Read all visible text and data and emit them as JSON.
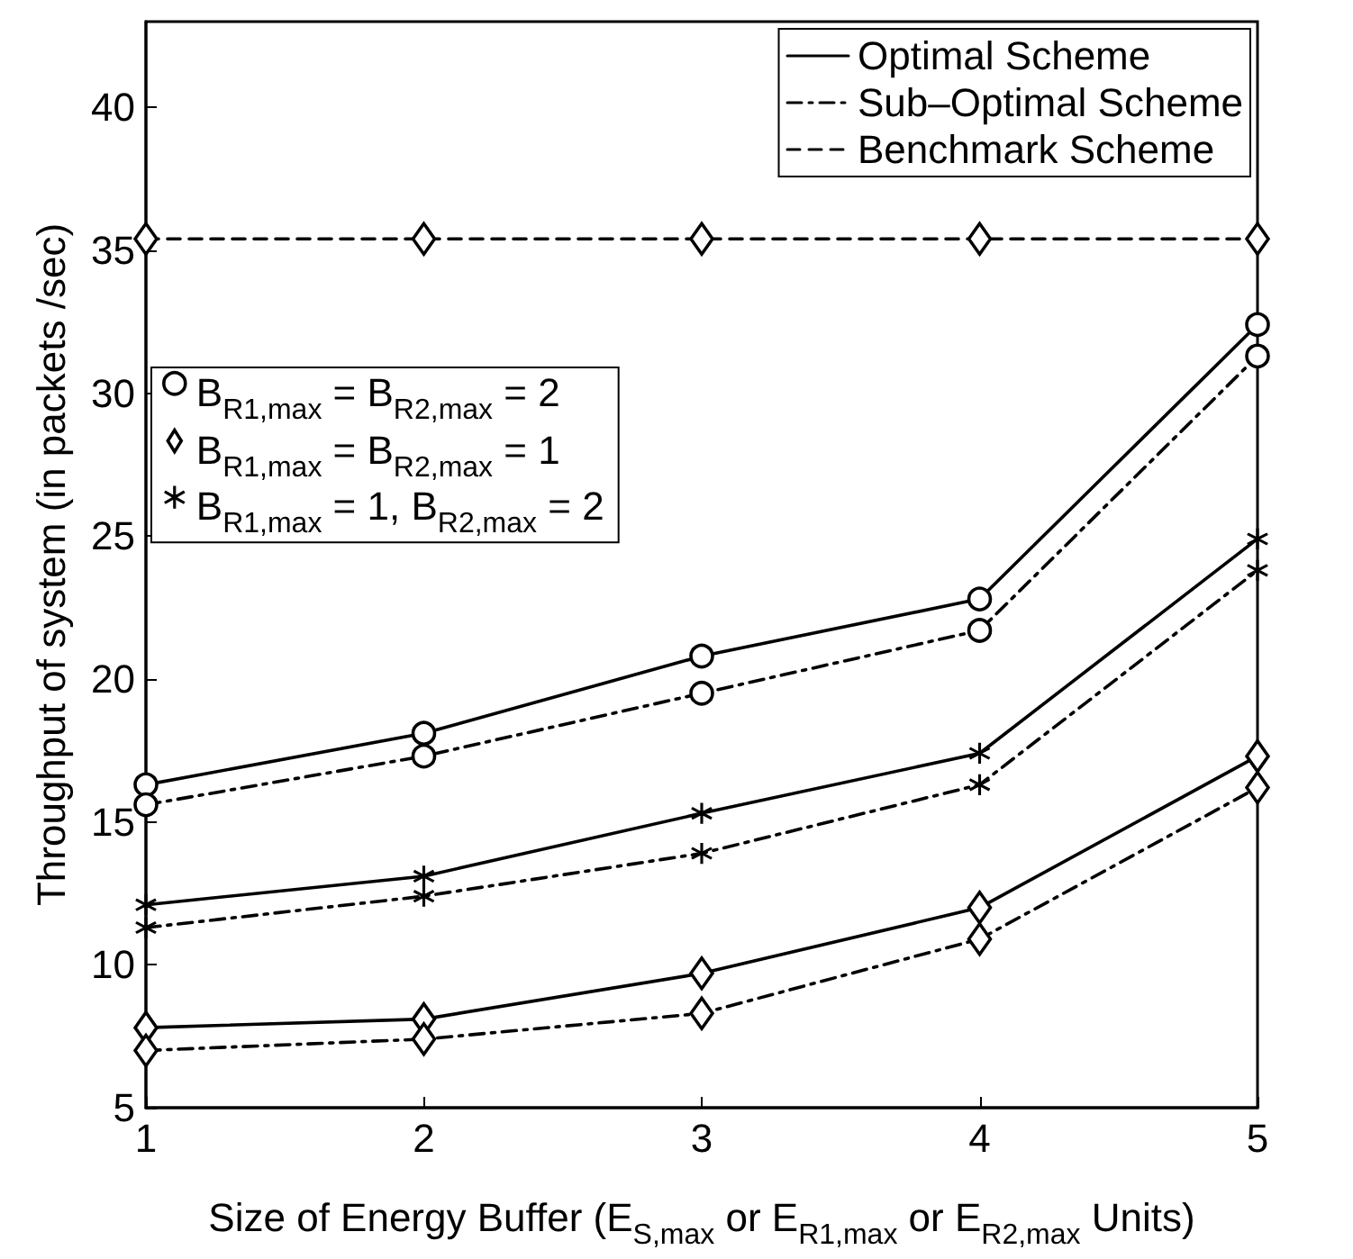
{
  "chart_data": {
    "type": "line",
    "xlabel": "Size of Energy Buffer (E$_{S,max}$ or E$_{R1,max}$ or E$_{R2,max}$ Units)",
    "ylabel": "Throughput of system (in packets /sec)",
    "x": [
      1,
      2,
      3,
      4,
      5
    ],
    "xlim": [
      1,
      5
    ],
    "xticks": [
      1,
      2,
      3,
      4,
      5
    ],
    "ylim": [
      5,
      43
    ],
    "yticks": [
      5,
      10,
      15,
      20,
      25,
      30,
      35,
      40
    ],
    "grid": false,
    "legend": "top right",
    "series": [
      {
        "name": "Optimal Scheme",
        "color": "#000000",
        "marker": "circle",
        "line_style": "solid",
        "values": [
          16.3,
          18.1,
          20.8,
          22.8,
          32.4
        ]
      },
      {
        "name": "B$_{R1,max}$ = B$_{R2,max}$ = 1",
        "color": "#000000",
        "marker": "diamond",
        "line_style": "solid",
        "values": [
          7.8,
          8.1,
          9.7,
          12.0,
          17.3
        ]
      },
      {
        "name": "B$_{R1,max}$ = 1, B$_{R2,max}$ = 2",
        "color": "#000000",
        "marker": "star",
        "line_style": "solid",
        "values": [
          12.1,
          13.1,
          15.3,
          17.4,
          24.9
        ]
      },
      {
        "name": "B$_{R1,max}$ = B$_{R2,max}$ = 2",
        "color": "#000000",
        "marker": "circle",
        "line_style": "dashdot",
        "values": [
          15.6,
          17.3,
          19.5,
          21.7,
          31.3
        ]
      },
      {
        "name": "Sub–Optimal Scheme",
        "color": "#000000",
        "marker": "diamond",
        "line_style": "dashdot",
        "values": [
          7.0,
          7.4,
          8.3,
          10.9,
          16.2
        ]
      },
      {
        "color": "#000000",
        "marker": "star",
        "line_style": "dashdot",
        "values": [
          11.3,
          12.4,
          13.9,
          16.3,
          23.8
        ]
      },
      {
        "name": "Benchmark Scheme",
        "color": "#000000",
        "marker": "diamond",
        "line_style": "dashed",
        "values": [
          35.4,
          35.4,
          35.4,
          35.4,
          35.4
        ]
      }
    ]
  }
}
